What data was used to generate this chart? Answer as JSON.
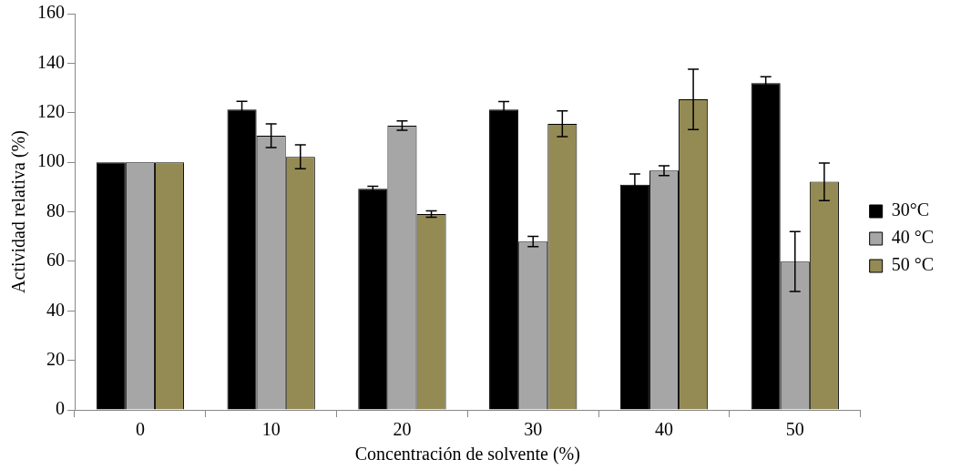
{
  "chart_data": {
    "type": "bar",
    "xlabel": "Concentración de solvente (%)",
    "ylabel": "Actividad relativa (%)",
    "categories": [
      "0",
      "10",
      "20",
      "30",
      "40",
      "50"
    ],
    "series": [
      {
        "name": "30°C",
        "color": "#000000",
        "values": [
          100,
          121.3,
          89.3,
          121.3,
          90.9,
          132
        ],
        "errors": [
          null,
          3.3,
          1,
          3.2,
          4.4,
          2.5
        ]
      },
      {
        "name": "40 °C",
        "color": "#a6a6a6",
        "values": [
          100,
          110.7,
          114.8,
          68,
          96.6,
          59.9
        ],
        "errors": [
          null,
          4.8,
          1.9,
          2.1,
          2,
          12.1
        ]
      },
      {
        "name": "50 °C",
        "color": "#948a54",
        "values": [
          100,
          102.2,
          79.1,
          115.5,
          125.4,
          92.1
        ],
        "errors": [
          null,
          4.8,
          1.3,
          5.2,
          12.2,
          7.6
        ]
      }
    ],
    "ylim": [
      0,
      160
    ],
    "yticks": [
      0,
      20,
      40,
      60,
      80,
      100,
      120,
      140,
      160
    ],
    "grid": false,
    "legend": "right"
  }
}
